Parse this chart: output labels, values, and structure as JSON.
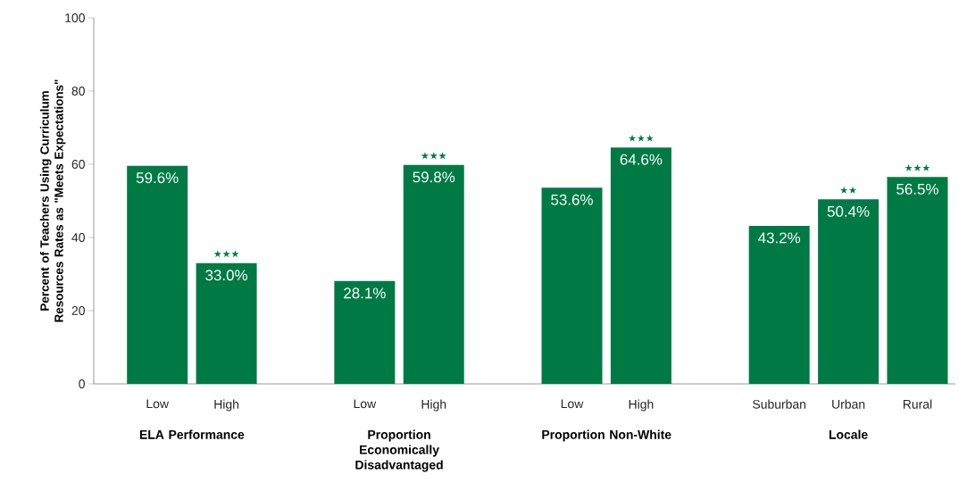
{
  "chart_data": {
    "type": "bar",
    "ylabel": "Percent of Teachers Using Curriculum Resources Rates as \"Meets Expectations\"",
    "categories": [
      "Low",
      "High",
      null,
      "Low",
      "High",
      null,
      "Low",
      "High",
      null,
      "Suburban",
      "Urban",
      "Rural"
    ],
    "values": [
      59.6,
      33.0,
      null,
      28.1,
      59.8,
      null,
      53.6,
      64.6,
      null,
      43.2,
      50.4,
      56.5
    ],
    "value_labels": [
      "59.6%",
      "33.0%",
      null,
      "28.1%",
      "59.8%",
      null,
      "53.6%",
      "64.6%",
      null,
      "43.2%",
      "50.4%",
      "56.5%"
    ],
    "color": "#007a45",
    "ylim": [
      0,
      100
    ],
    "yticks": [
      0,
      20,
      40,
      60,
      80,
      100
    ],
    "annotations": [
      "ELA Performance",
      "Proportion Economically Disadvantaged",
      "Proportion Non-White",
      "Locale",
      {
        "text": "★★★",
        "x": "High",
        "y": 33.0
      },
      "★★★",
      "★★★",
      {
        "text": "★★",
        "x": "Urban",
        "y": 50.4
      },
      {
        "text": "★★★",
        "x": "Rural",
        "y": 56.5
      }
    ]
  }
}
